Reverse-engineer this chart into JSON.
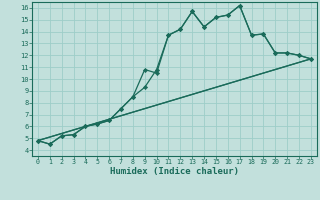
{
  "xlabel": "Humidex (Indice chaleur)",
  "bg_color": "#c2e0dc",
  "line_color": "#1a6b5a",
  "grid_color": "#9ecec8",
  "xlim": [
    -0.5,
    23.5
  ],
  "ylim": [
    3.5,
    16.5
  ],
  "xticks": [
    0,
    1,
    2,
    3,
    4,
    5,
    6,
    7,
    8,
    9,
    10,
    11,
    12,
    13,
    14,
    15,
    16,
    17,
    18,
    19,
    20,
    21,
    22,
    23
  ],
  "yticks": [
    4,
    5,
    6,
    7,
    8,
    9,
    10,
    11,
    12,
    13,
    14,
    15,
    16
  ],
  "line1_x": [
    0,
    1,
    2,
    3,
    4,
    5,
    6,
    7,
    8,
    9,
    10,
    11,
    12,
    13,
    14,
    15,
    16,
    17,
    18,
    19,
    20,
    21,
    22,
    23
  ],
  "line1_y": [
    4.8,
    4.5,
    5.2,
    5.3,
    6.0,
    6.2,
    6.5,
    7.5,
    8.5,
    9.3,
    10.8,
    13.7,
    14.2,
    15.7,
    14.4,
    15.2,
    15.4,
    16.2,
    13.7,
    13.8,
    12.2,
    12.2,
    12.0,
    11.7
  ],
  "line2_x": [
    0,
    1,
    2,
    3,
    4,
    5,
    6,
    7,
    8,
    9,
    10,
    11,
    12,
    13,
    14,
    15,
    16,
    17,
    18,
    19,
    20,
    21,
    22,
    23
  ],
  "line2_y": [
    4.8,
    4.5,
    5.2,
    5.3,
    6.0,
    6.2,
    6.5,
    7.5,
    8.5,
    10.8,
    10.5,
    13.7,
    14.2,
    15.7,
    14.4,
    15.2,
    15.4,
    16.2,
    13.7,
    13.8,
    12.2,
    12.2,
    12.0,
    11.7
  ],
  "line3_x": [
    0,
    23
  ],
  "line3_y": [
    4.8,
    11.7
  ],
  "line4_x": [
    0,
    23
  ],
  "line4_y": [
    4.8,
    11.7
  ]
}
